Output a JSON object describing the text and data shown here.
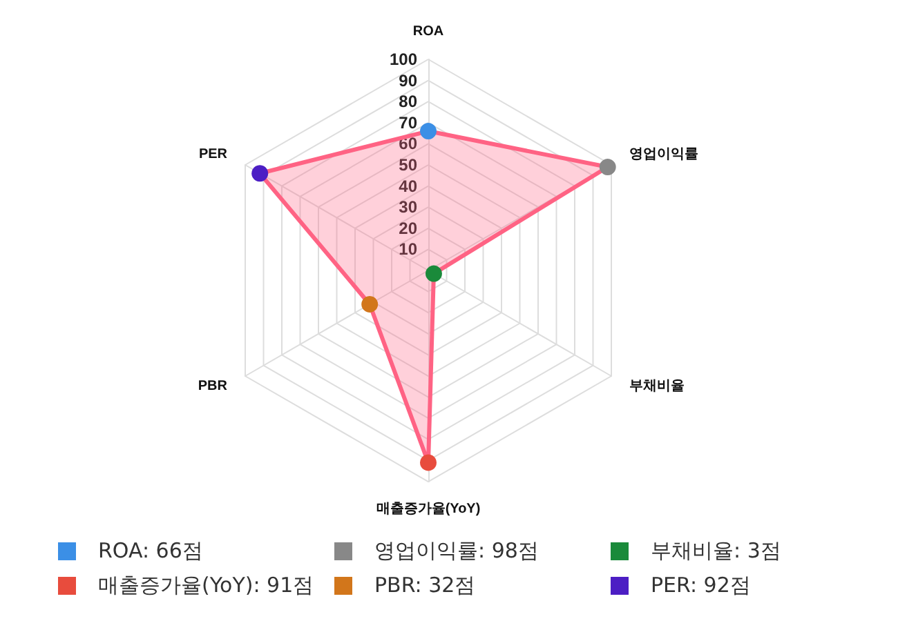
{
  "chart_data": {
    "type": "radar",
    "categories": [
      "ROA",
      "영업이익률",
      "부채비율",
      "매출증가율(YoY)",
      "PBR",
      "PER"
    ],
    "series": [
      {
        "color": "#ff6384",
        "values": [
          66,
          98,
          3,
          91,
          32,
          92
        ]
      }
    ],
    "colors": [
      "#3b8fe6",
      "#888888",
      "#1a8a3a",
      "#e84c3d",
      "#d2761b",
      "#4c1ec4"
    ],
    "value_labels": [
      "ROA: 66점",
      "영업이익률: 98점",
      "부채비율: 3점",
      "매출증가율(YoY): 91점",
      "PBR: 32점",
      "PER: 92점"
    ],
    "ylim": [
      0,
      100
    ],
    "yticks": [
      10,
      20,
      30,
      40,
      50,
      60,
      70,
      80,
      90,
      100
    ],
    "grid": true,
    "marker": "circle"
  }
}
